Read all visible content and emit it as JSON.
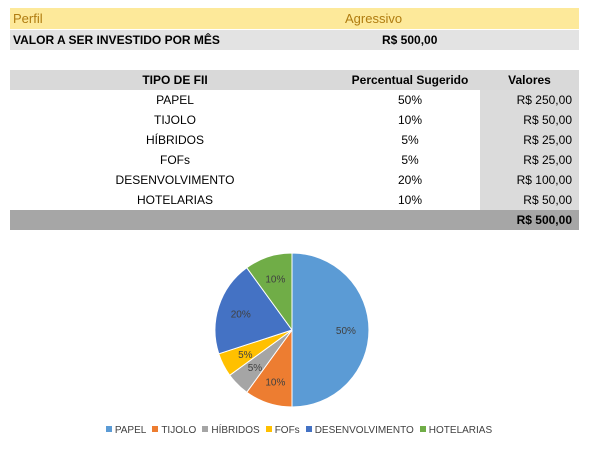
{
  "header": {
    "profile_label": "Perfil",
    "profile_value": "Agressivo",
    "invest_label": "VALOR A SER INVESTIDO POR MÊS",
    "invest_value": "R$ 500,00"
  },
  "table": {
    "col_type": "TIPO DE FII",
    "col_percent": "Percentual Sugerido",
    "col_values": "Valores",
    "rows": [
      {
        "type": "PAPEL",
        "percent": "50%",
        "value": "R$ 250,00"
      },
      {
        "type": "TIJOLO",
        "percent": "10%",
        "value": "R$ 50,00"
      },
      {
        "type": "HÍBRIDOS",
        "percent": "5%",
        "value": "R$ 25,00"
      },
      {
        "type": "FOFs",
        "percent": "5%",
        "value": "R$ 25,00"
      },
      {
        "type": "DESENVOLVIMENTO",
        "percent": "20%",
        "value": "R$ 100,00"
      },
      {
        "type": "HOTELARIAS",
        "percent": "10%",
        "value": "R$ 50,00"
      }
    ],
    "total": "R$ 500,00"
  },
  "chart_data": {
    "type": "pie",
    "categories": [
      "PAPEL",
      "TIJOLO",
      "HÍBRIDOS",
      "FOFs",
      "DESENVOLVIMENTO",
      "HOTELARIAS"
    ],
    "values": [
      50,
      10,
      5,
      5,
      20,
      10
    ],
    "data_labels": [
      "50%",
      "10%",
      "5%",
      "5%",
      "20%",
      "10%"
    ],
    "colors": [
      "#5b9bd5",
      "#ed7d31",
      "#a5a5a5",
      "#ffc000",
      "#4472c4",
      "#70ad47"
    ],
    "legend": "bottom"
  }
}
